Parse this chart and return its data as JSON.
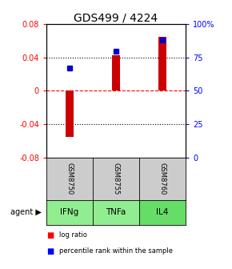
{
  "title": "GDS499 / 4224",
  "categories": [
    "IFNg",
    "TNFa",
    "IL4"
  ],
  "gsm_labels": [
    "GSM8750",
    "GSM8755",
    "GSM8760"
  ],
  "log_ratios": [
    -0.055,
    0.043,
    0.065
  ],
  "percentile_ranks": [
    67,
    80,
    88
  ],
  "ylim_left": [
    -0.08,
    0.08
  ],
  "ylim_right": [
    0,
    100
  ],
  "left_yticks": [
    -0.08,
    -0.04,
    0,
    0.04,
    0.08
  ],
  "right_yticks": [
    0,
    25,
    50,
    75,
    100
  ],
  "right_yticklabels": [
    "0",
    "25",
    "50",
    "75",
    "100%"
  ],
  "bar_color": "#cc0000",
  "dot_color": "#0000cc",
  "gray_bg": "#cccccc",
  "green_bg": "#90ee90",
  "green_bg2": "#66dd66",
  "legend_items": [
    "log ratio",
    "percentile rank within the sample"
  ],
  "hline_colors": [
    "black",
    "red",
    "black"
  ],
  "hline_styles": [
    "dotted",
    "dashed",
    "dotted"
  ],
  "hline_values": [
    -0.04,
    0.0,
    0.04
  ]
}
